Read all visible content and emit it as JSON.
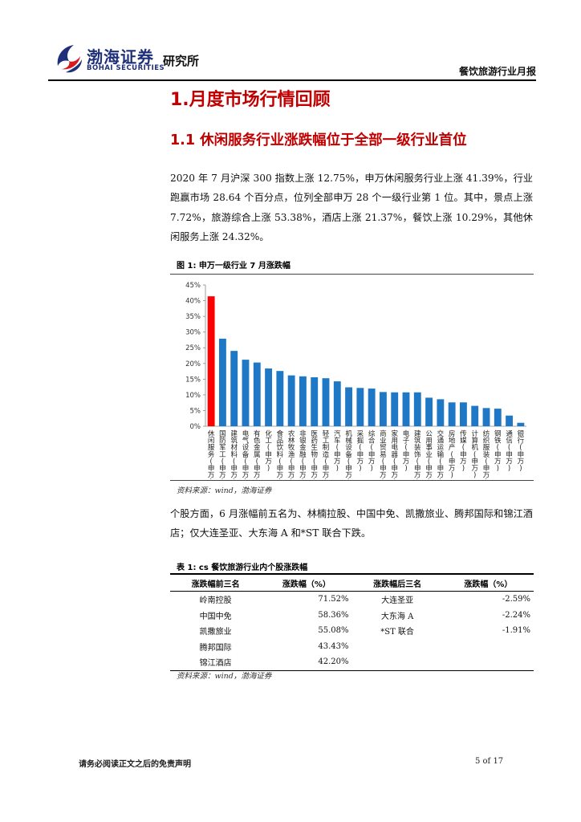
{
  "header": {
    "brand_cn": "渤海证券",
    "brand_en": "BOHAI SECURITIES",
    "institute": "研究所",
    "report_type": "餐饮旅游行业月报"
  },
  "section": {
    "h1": "1.月度市场行情回顾",
    "h2": "1.1 休闲服务行业涨跌幅位于全部一级行业首位",
    "para1": "2020 年 7 月沪深 300 指数上涨 12.75%，申万休闲服务行业上涨 41.39%，行业跑赢市场 28.64 个百分点，位列全部申万 28 个一级行业第 1 位。其中，景点上涨 7.72%，旅游综合上涨 53.38%，酒店上涨 21.37%，餐饮上涨 10.29%，其他休闲服务上涨 24.32%。",
    "para2": "个股方面，6 月涨幅前五名为、林楠拉股、中国中免、凯撒旅业、腾邦国际和锦江酒店；仅大连圣亚、大东海 A 和*ST 联合下跌。"
  },
  "figure": {
    "title": "图 1:  申万一级行业 7 月涨跌幅",
    "source": "资料来源：wind，渤海证券"
  },
  "chart_data": {
    "type": "bar",
    "title": "",
    "xlabel": "",
    "ylabel": "",
    "ylim": [
      0,
      45
    ],
    "yticks": [
      "0%",
      "5%",
      "10%",
      "15%",
      "20%",
      "25%",
      "30%",
      "35%",
      "40%",
      "45%"
    ],
    "grid": false,
    "categories": [
      "休闲服务(申万)",
      "国防军工(申万)",
      "建筑材料(申万)",
      "电气设备(申万)",
      "有色金属(申万)",
      "化工(申万)",
      "食品饮料(申万)",
      "农林牧渔(申万)",
      "非银金融(申万)",
      "医药生物(申万)",
      "轻工制造(申万)",
      "汽车(申万)",
      "机械设备(申万)",
      "采掘(申万)",
      "综合(申万)",
      "商业贸易(申万)",
      "家用电器(申万)",
      "电子(申万)",
      "建筑装饰(申万)",
      "公用事业(申万)",
      "交通运输(申万)",
      "房地产(申万)",
      "传媒(申万)",
      "计算机(申万)",
      "纺织服装(申万)",
      "钢铁(申万)",
      "通信(申万)",
      "银行(申万)"
    ],
    "values": [
      41.39,
      27.9,
      24.0,
      21.2,
      20.3,
      18.4,
      17.6,
      16.2,
      15.9,
      15.6,
      15.3,
      14.3,
      12.4,
      12.2,
      12.0,
      10.9,
      10.8,
      10.8,
      10.8,
      9.1,
      8.6,
      7.6,
      7.6,
      6.5,
      5.8,
      5.6,
      3.4,
      1.1
    ],
    "highlight_index": 0,
    "colors": {
      "bar": "#1f78c6",
      "highlight": "#ff0000"
    }
  },
  "table": {
    "title": "表 1:  cs 餐饮旅游行业内个股涨跌幅",
    "headers": [
      "涨跌幅前三名",
      "涨跌幅（%）",
      "涨跌幅后三名",
      "涨跌幅（%）"
    ],
    "rows": [
      [
        "岭南控股",
        "71.52%",
        "大连圣亚",
        "-2.59%"
      ],
      [
        "中国中免",
        "58.36%",
        "大东海 A",
        "-2.24%"
      ],
      [
        "凯撒旅业",
        "55.08%",
        "*ST 联合",
        "-1.91%"
      ],
      [
        "腾邦国际",
        "43.43%",
        "",
        ""
      ],
      [
        "锦江酒店",
        "42.20%",
        "",
        ""
      ]
    ],
    "source": "资料来源：wind，渤海证券"
  },
  "footer": {
    "disclaimer": "请务必阅读正文之后的免责声明",
    "page": "5 of 17"
  }
}
